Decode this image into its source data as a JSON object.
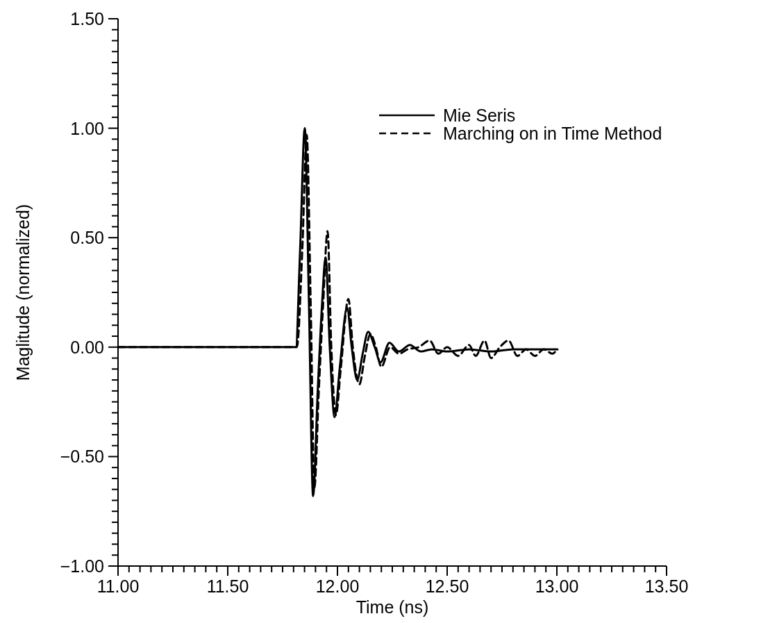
{
  "chart_data": {
    "type": "line",
    "xlabel": "Time (ns)",
    "ylabel": "Maglitude (normalized)",
    "xlim": [
      11,
      13.5
    ],
    "ylim": [
      -1,
      1.5
    ],
    "xticks": [
      {
        "value": 11,
        "label": "11.00"
      },
      {
        "value": 11.05,
        "label": null
      },
      {
        "value": 11.1,
        "label": null
      },
      {
        "value": 11.15,
        "label": null
      },
      {
        "value": 11.2,
        "label": null
      },
      {
        "value": 11.25,
        "label": null
      },
      {
        "value": 11.3,
        "label": null
      },
      {
        "value": 11.35,
        "label": null
      },
      {
        "value": 11.4,
        "label": null
      },
      {
        "value": 11.45,
        "label": null
      },
      {
        "value": 11.5,
        "label": "11.50"
      },
      {
        "value": 11.55,
        "label": null
      },
      {
        "value": 11.6,
        "label": null
      },
      {
        "value": 11.65,
        "label": null
      },
      {
        "value": 11.7,
        "label": null
      },
      {
        "value": 11.75,
        "label": null
      },
      {
        "value": 11.8,
        "label": null
      },
      {
        "value": 11.85,
        "label": null
      },
      {
        "value": 11.9,
        "label": null
      },
      {
        "value": 11.95,
        "label": null
      },
      {
        "value": 12,
        "label": "12.00"
      },
      {
        "value": 12.05,
        "label": null
      },
      {
        "value": 12.1,
        "label": null
      },
      {
        "value": 12.15,
        "label": null
      },
      {
        "value": 12.2,
        "label": null
      },
      {
        "value": 12.25,
        "label": null
      },
      {
        "value": 12.3,
        "label": null
      },
      {
        "value": 12.35,
        "label": null
      },
      {
        "value": 12.4,
        "label": null
      },
      {
        "value": 12.45,
        "label": null
      },
      {
        "value": 12.5,
        "label": "12.50"
      },
      {
        "value": 12.55,
        "label": null
      },
      {
        "value": 12.6,
        "label": null
      },
      {
        "value": 12.65,
        "label": null
      },
      {
        "value": 12.7,
        "label": null
      },
      {
        "value": 12.75,
        "label": null
      },
      {
        "value": 12.8,
        "label": null
      },
      {
        "value": 12.85,
        "label": null
      },
      {
        "value": 12.9,
        "label": null
      },
      {
        "value": 12.95,
        "label": null
      },
      {
        "value": 13,
        "label": "13.00"
      },
      {
        "value": 13.05,
        "label": null
      },
      {
        "value": 13.1,
        "label": null
      },
      {
        "value": 13.15,
        "label": null
      },
      {
        "value": 13.2,
        "label": null
      },
      {
        "value": 13.25,
        "label": null
      },
      {
        "value": 13.3,
        "label": null
      },
      {
        "value": 13.35,
        "label": null
      },
      {
        "value": 13.4,
        "label": null
      },
      {
        "value": 13.45,
        "label": null
      },
      {
        "value": 13.5,
        "label": "13.50"
      }
    ],
    "yticks": [
      {
        "value": -1,
        "label": "−1.00"
      },
      {
        "value": -0.95,
        "label": null
      },
      {
        "value": -0.9,
        "label": null
      },
      {
        "value": -0.85,
        "label": null
      },
      {
        "value": -0.8,
        "label": null
      },
      {
        "value": -0.75,
        "label": null
      },
      {
        "value": -0.7,
        "label": null
      },
      {
        "value": -0.65,
        "label": null
      },
      {
        "value": -0.6,
        "label": null
      },
      {
        "value": -0.55,
        "label": null
      },
      {
        "value": -0.5,
        "label": "−0.50"
      },
      {
        "value": -0.45,
        "label": null
      },
      {
        "value": -0.4,
        "label": null
      },
      {
        "value": -0.35,
        "label": null
      },
      {
        "value": -0.3,
        "label": null
      },
      {
        "value": -0.25,
        "label": null
      },
      {
        "value": -0.2,
        "label": null
      },
      {
        "value": -0.15,
        "label": null
      },
      {
        "value": -0.1,
        "label": null
      },
      {
        "value": -0.05,
        "label": null
      },
      {
        "value": 0,
        "label": "0.00"
      },
      {
        "value": 0.05,
        "label": null
      },
      {
        "value": 0.1,
        "label": null
      },
      {
        "value": 0.15,
        "label": null
      },
      {
        "value": 0.2,
        "label": null
      },
      {
        "value": 0.25,
        "label": null
      },
      {
        "value": 0.3,
        "label": null
      },
      {
        "value": 0.35,
        "label": null
      },
      {
        "value": 0.4,
        "label": null
      },
      {
        "value": 0.45,
        "label": null
      },
      {
        "value": 0.5,
        "label": "0.50"
      },
      {
        "value": 0.55,
        "label": null
      },
      {
        "value": 0.6,
        "label": null
      },
      {
        "value": 0.65,
        "label": null
      },
      {
        "value": 0.7,
        "label": null
      },
      {
        "value": 0.75,
        "label": null
      },
      {
        "value": 0.8,
        "label": null
      },
      {
        "value": 0.85,
        "label": null
      },
      {
        "value": 0.9,
        "label": null
      },
      {
        "value": 0.95,
        "label": null
      },
      {
        "value": 1,
        "label": "1.00"
      },
      {
        "value": 1.05,
        "label": null
      },
      {
        "value": 1.1,
        "label": null
      },
      {
        "value": 1.15,
        "label": null
      },
      {
        "value": 1.2,
        "label": null
      },
      {
        "value": 1.25,
        "label": null
      },
      {
        "value": 1.3,
        "label": null
      },
      {
        "value": 1.35,
        "label": null
      },
      {
        "value": 1.4,
        "label": null
      },
      {
        "value": 1.45,
        "label": null
      },
      {
        "value": 1.5,
        "label": "1.50"
      }
    ],
    "grid": false,
    "legend": "top right",
    "marker": "none",
    "series": [
      {
        "name": "Mie Seris",
        "color": "#000000",
        "line_style": "solid",
        "x": [
          11.0,
          11.81,
          11.83,
          11.851,
          11.87,
          11.889,
          11.91,
          11.93,
          11.946,
          11.965,
          11.987,
          12.01,
          12.044,
          12.065,
          12.09,
          12.115,
          12.14,
          12.17,
          12.196,
          12.237,
          12.28,
          12.33,
          12.38,
          12.43,
          12.5,
          12.6,
          12.7,
          12.8,
          12.9,
          13.003
        ],
        "values": [
          0,
          0,
          0.45,
          1.0,
          0.2,
          -0.68,
          -0.2,
          0.2,
          0.41,
          0.0,
          -0.32,
          -0.1,
          0.18,
          0.0,
          -0.15,
          -0.03,
          0.07,
          0.0,
          -0.07,
          0.02,
          -0.02,
          0.01,
          -0.02,
          -0.01,
          -0.02,
          -0.01,
          -0.02,
          -0.01,
          -0.01,
          -0.01
        ]
      },
      {
        "name": "Marching on in Time Method",
        "color": "#000000",
        "line_style": "dashed",
        "x": [
          11.0,
          11.815,
          11.84,
          11.86,
          11.878,
          11.895,
          11.915,
          11.935,
          11.955,
          11.972,
          11.993,
          12.015,
          12.05,
          12.07,
          12.1,
          12.125,
          12.15,
          12.175,
          12.2,
          12.24,
          12.28,
          12.32,
          12.37,
          12.42,
          12.46,
          12.5,
          12.55,
          12.6,
          12.63,
          12.67,
          12.7,
          12.74,
          12.78,
          12.82,
          12.86,
          12.9,
          12.94,
          12.98,
          13.0
        ],
        "values": [
          0,
          0,
          0.45,
          0.97,
          0.2,
          -0.64,
          -0.2,
          0.2,
          0.53,
          0.0,
          -0.31,
          -0.1,
          0.22,
          0.0,
          -0.17,
          -0.04,
          0.06,
          0.0,
          -0.09,
          0.0,
          -0.03,
          -0.01,
          0.0,
          0.03,
          -0.03,
          0.0,
          -0.04,
          0.01,
          -0.04,
          0.03,
          -0.05,
          0.0,
          0.03,
          -0.04,
          -0.01,
          -0.04,
          -0.01,
          -0.03,
          -0.01
        ]
      }
    ]
  }
}
